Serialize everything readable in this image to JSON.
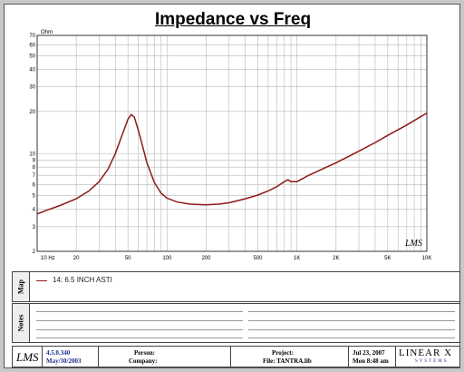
{
  "title": "Impedance vs Freq",
  "y_unit": "Ohm",
  "watermark": "LMS",
  "chart_data": {
    "type": "line",
    "title": "Impedance vs Freq",
    "ylabel": "Ohm",
    "x_scale": "log",
    "y_scale": "log",
    "xlim": [
      10,
      10000
    ],
    "ylim": [
      2,
      70
    ],
    "x_ticks": [
      "10 Hz",
      "20",
      "50",
      "100",
      "200",
      "500",
      "1K",
      "2K",
      "5K",
      "10K"
    ],
    "y_ticks": [
      "70",
      "60",
      "50",
      "40",
      "30",
      "20",
      "10",
      "9",
      "8",
      "7",
      "6",
      "5",
      "4",
      "3",
      "2"
    ],
    "series": [
      {
        "name": "14: 6.5 INCH ASTI",
        "color": "#8b1a1a",
        "x": [
          10,
          12,
          15,
          20,
          25,
          30,
          35,
          40,
          45,
          50,
          53,
          56,
          60,
          65,
          70,
          80,
          90,
          100,
          120,
          150,
          200,
          250,
          300,
          400,
          500,
          600,
          700,
          800,
          850,
          900,
          1000,
          1200,
          1500,
          2000,
          3000,
          4000,
          5000,
          7000,
          10000
        ],
        "y": [
          3.7,
          3.95,
          4.25,
          4.75,
          5.4,
          6.3,
          7.7,
          10.0,
          13.5,
          17.6,
          19.0,
          18.2,
          14.8,
          11.2,
          8.6,
          6.2,
          5.2,
          4.8,
          4.5,
          4.35,
          4.3,
          4.35,
          4.45,
          4.75,
          5.05,
          5.4,
          5.8,
          6.3,
          6.5,
          6.3,
          6.3,
          6.9,
          7.6,
          8.6,
          10.4,
          12.0,
          13.5,
          16.0,
          19.5
        ]
      }
    ],
    "grid": true
  },
  "map_panel": {
    "side_label": "Map",
    "legend": "14: 6.5 INCH ASTI"
  },
  "notes_panel": {
    "side_label": "Notes"
  },
  "footer": {
    "logo": "LMS",
    "version": "4.5.0.340",
    "date": "May/30/2003",
    "person_label": "Person:",
    "company_label": "Company:",
    "project_label": "Project:",
    "file_label": "File: TANTRA.lib",
    "print_date": "Jul 23, 2007",
    "print_time": "Mon  8:48  am",
    "brand": "LINEAR X",
    "brand_sub": "SYSTEMS"
  }
}
